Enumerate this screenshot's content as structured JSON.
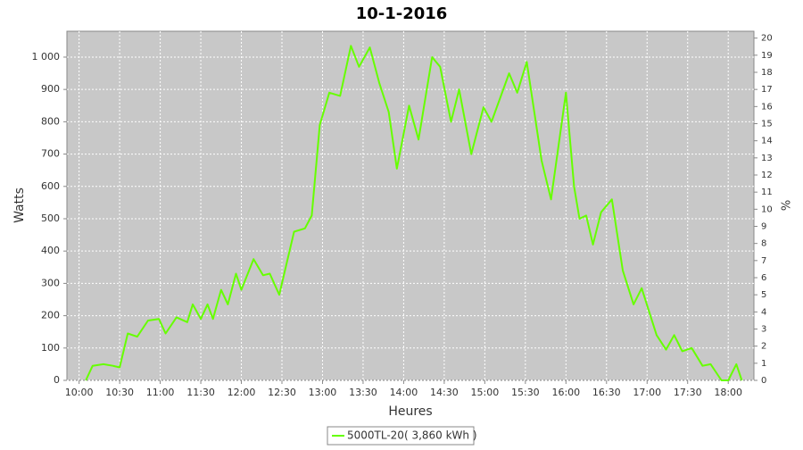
{
  "chart_data": {
    "type": "line",
    "title": "10-1-2016",
    "x_label": "Heures",
    "y_label": "Watts",
    "y2_label": "%",
    "x": [
      "10:05",
      "10:10",
      "10:18",
      "10:25",
      "10:30",
      "10:36",
      "10:43",
      "10:51",
      "10:59",
      "11:04",
      "11:12",
      "11:20",
      "11:24",
      "11:30",
      "11:35",
      "11:39",
      "11:45",
      "11:50",
      "11:56",
      "12:00",
      "12:09",
      "12:16",
      "12:21",
      "12:28",
      "12:39",
      "12:47",
      "12:52",
      "12:58",
      "13:05",
      "13:13",
      "13:21",
      "13:27",
      "13:35",
      "13:42",
      "13:49",
      "13:55",
      "14:04",
      "14:11",
      "14:21",
      "14:27",
      "14:35",
      "14:41",
      "14:50",
      "14:59",
      "15:05",
      "15:18",
      "15:24",
      "15:31",
      "15:42",
      "15:49",
      "16:00",
      "16:06",
      "16:10",
      "16:15",
      "16:20",
      "16:26",
      "16:34",
      "16:42",
      "16:50",
      "16:56",
      "17:07",
      "17:14",
      "17:20",
      "17:26",
      "17:33",
      "17:41",
      "17:47",
      "17:55",
      "18:00",
      "18:06",
      "18:10"
    ],
    "series": [
      {
        "name": "5000TL-20( 3,860 kWh )",
        "color": "#66ff00",
        "values": [
          0,
          45,
          50,
          45,
          40,
          145,
          135,
          185,
          190,
          145,
          195,
          180,
          235,
          190,
          235,
          190,
          280,
          235,
          330,
          280,
          375,
          325,
          330,
          265,
          460,
          470,
          510,
          790,
          890,
          880,
          1035,
          970,
          1030,
          920,
          830,
          655,
          850,
          745,
          1000,
          970,
          800,
          900,
          700,
          845,
          800,
          950,
          890,
          985,
          680,
          560,
          890,
          600,
          500,
          510,
          420,
          520,
          560,
          340,
          235,
          285,
          140,
          95,
          140,
          90,
          100,
          45,
          50,
          0,
          0,
          50,
          0
        ]
      }
    ],
    "xlim": [
      "09:51",
      "18:19"
    ],
    "xticks": [
      "10:00",
      "10:30",
      "11:00",
      "11:30",
      "12:00",
      "12:30",
      "13:00",
      "13:30",
      "14:00",
      "14:30",
      "15:00",
      "15:30",
      "16:00",
      "16:30",
      "17:00",
      "17:30",
      "18:00"
    ],
    "ylim": [
      0,
      1080
    ],
    "yticks": [
      0,
      100,
      200,
      300,
      400,
      500,
      600,
      700,
      800,
      900,
      {
        "value": 1000,
        "label": "1 000"
      }
    ],
    "y2lim": [
      0,
      20.4
    ],
    "y2ticks": [
      0,
      1,
      2,
      3,
      4,
      5,
      6,
      7,
      8,
      9,
      10,
      11,
      12,
      13,
      14,
      15,
      16,
      17,
      18,
      19,
      20
    ],
    "grid": true
  }
}
